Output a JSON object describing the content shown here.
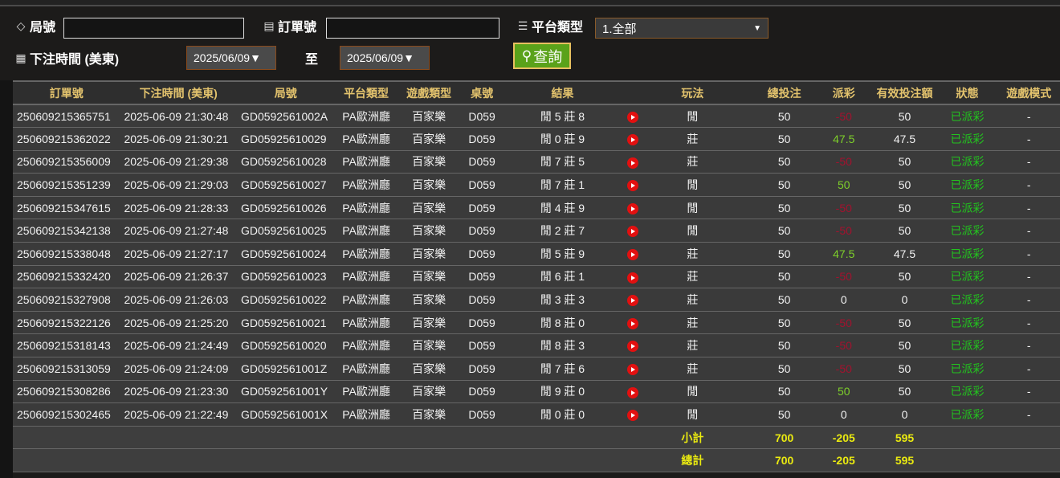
{
  "filters": {
    "round_label": "局號",
    "round_value": "",
    "order_label": "訂單號",
    "order_value": "",
    "platform_label": "平台類型",
    "platform_value": "1.全部",
    "time_label": "下注時間 (美東)",
    "date_from": "2025/06/09▼",
    "to_label": "至",
    "date_to": "2025/06/09▼",
    "search_label": "查詢"
  },
  "icons": {
    "round": "tag-icon",
    "order": "clipboard-icon",
    "platform": "server-icon",
    "time": "calendar-icon",
    "search": "search-icon",
    "video": "play-video-icon"
  },
  "colors": {
    "header_text": "#e3c36d",
    "negative": "#a3122e",
    "positive": "#7ed02a",
    "status": "#22c41e",
    "summary": "#eaea10",
    "search_button": "#5aa21a"
  },
  "table": {
    "headers": [
      "訂單號",
      "下注時間 (美東)",
      "局號",
      "平台類型",
      "遊戲類型",
      "桌號",
      "結果",
      "",
      "玩法",
      "總投注",
      "派彩",
      "有效投注額",
      "狀態",
      "遊戲模式"
    ],
    "rows": [
      [
        "250609215365751",
        "2025-06-09 21:30:48",
        "GD0592561002A",
        "PA歐洲廳",
        "百家樂",
        "D059",
        "閒 5 莊 8",
        "閒",
        "50",
        "-50",
        "50",
        "已派彩",
        "-"
      ],
      [
        "250609215362022",
        "2025-06-09 21:30:21",
        "GD05925610029",
        "PA歐洲廳",
        "百家樂",
        "D059",
        "閒 0 莊 9",
        "莊",
        "50",
        "47.5",
        "47.5",
        "已派彩",
        "-"
      ],
      [
        "250609215356009",
        "2025-06-09 21:29:38",
        "GD05925610028",
        "PA歐洲廳",
        "百家樂",
        "D059",
        "閒 7 莊 5",
        "莊",
        "50",
        "-50",
        "50",
        "已派彩",
        "-"
      ],
      [
        "250609215351239",
        "2025-06-09 21:29:03",
        "GD05925610027",
        "PA歐洲廳",
        "百家樂",
        "D059",
        "閒 7 莊 1",
        "閒",
        "50",
        "50",
        "50",
        "已派彩",
        "-"
      ],
      [
        "250609215347615",
        "2025-06-09 21:28:33",
        "GD05925610026",
        "PA歐洲廳",
        "百家樂",
        "D059",
        "閒 4 莊 9",
        "閒",
        "50",
        "-50",
        "50",
        "已派彩",
        "-"
      ],
      [
        "250609215342138",
        "2025-06-09 21:27:48",
        "GD05925610025",
        "PA歐洲廳",
        "百家樂",
        "D059",
        "閒 2 莊 7",
        "閒",
        "50",
        "-50",
        "50",
        "已派彩",
        "-"
      ],
      [
        "250609215338048",
        "2025-06-09 21:27:17",
        "GD05925610024",
        "PA歐洲廳",
        "百家樂",
        "D059",
        "閒 5 莊 9",
        "莊",
        "50",
        "47.5",
        "47.5",
        "已派彩",
        "-"
      ],
      [
        "250609215332420",
        "2025-06-09 21:26:37",
        "GD05925610023",
        "PA歐洲廳",
        "百家樂",
        "D059",
        "閒 6 莊 1",
        "莊",
        "50",
        "-50",
        "50",
        "已派彩",
        "-"
      ],
      [
        "250609215327908",
        "2025-06-09 21:26:03",
        "GD05925610022",
        "PA歐洲廳",
        "百家樂",
        "D059",
        "閒 3 莊 3",
        "莊",
        "50",
        "0",
        "0",
        "已派彩",
        "-"
      ],
      [
        "250609215322126",
        "2025-06-09 21:25:20",
        "GD05925610021",
        "PA歐洲廳",
        "百家樂",
        "D059",
        "閒 8 莊 0",
        "莊",
        "50",
        "-50",
        "50",
        "已派彩",
        "-"
      ],
      [
        "250609215318143",
        "2025-06-09 21:24:49",
        "GD05925610020",
        "PA歐洲廳",
        "百家樂",
        "D059",
        "閒 8 莊 3",
        "莊",
        "50",
        "-50",
        "50",
        "已派彩",
        "-"
      ],
      [
        "250609215313059",
        "2025-06-09 21:24:09",
        "GD0592561001Z",
        "PA歐洲廳",
        "百家樂",
        "D059",
        "閒 7 莊 6",
        "莊",
        "50",
        "-50",
        "50",
        "已派彩",
        "-"
      ],
      [
        "250609215308286",
        "2025-06-09 21:23:30",
        "GD0592561001Y",
        "PA歐洲廳",
        "百家樂",
        "D059",
        "閒 9 莊 0",
        "閒",
        "50",
        "50",
        "50",
        "已派彩",
        "-"
      ],
      [
        "250609215302465",
        "2025-06-09 21:22:49",
        "GD0592561001X",
        "PA歐洲廳",
        "百家樂",
        "D059",
        "閒 0 莊 0",
        "閒",
        "50",
        "0",
        "0",
        "已派彩",
        "-"
      ]
    ],
    "subtotal": {
      "label": "小計",
      "total_bet": "700",
      "payout": "-205",
      "valid_bet": "595"
    },
    "grand_total": {
      "label": "總計",
      "total_bet": "700",
      "payout": "-205",
      "valid_bet": "595"
    }
  }
}
